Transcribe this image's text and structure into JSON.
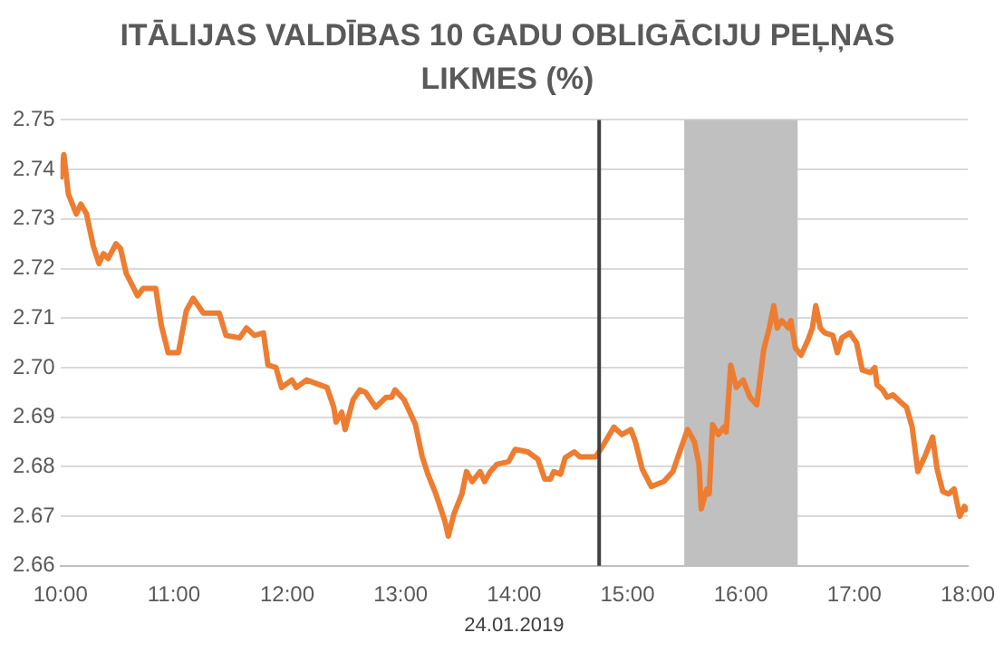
{
  "chart_data": {
    "type": "line",
    "title": "ITĀLIJAS VALDĪBAS 10 GADU OBLIGĀCIJU PEĻŅAS LIKMES (%)",
    "xlabel": "24.01.2019",
    "series": [
      {
        "color": "#ed7d31",
        "x": [
          10.0,
          10.03,
          10.07,
          10.14,
          10.18,
          10.23,
          10.29,
          10.34,
          10.38,
          10.42,
          10.49,
          10.53,
          10.58,
          10.68,
          10.73,
          10.84,
          10.89,
          10.95,
          11.04,
          11.11,
          11.17,
          11.26,
          11.4,
          11.46,
          11.58,
          11.64,
          11.71,
          11.79,
          11.83,
          11.9,
          11.95,
          12.04,
          12.08,
          12.17,
          12.35,
          12.41,
          12.43,
          12.48,
          12.51,
          12.58,
          12.64,
          12.69,
          12.78,
          12.87,
          12.92,
          12.95,
          13.03,
          13.13,
          13.19,
          13.24,
          13.31,
          13.39,
          13.42,
          13.47,
          13.54,
          13.58,
          13.63,
          13.7,
          13.74,
          13.79,
          13.85,
          13.95,
          14.01,
          14.12,
          14.21,
          14.27,
          14.32,
          14.35,
          14.41,
          14.45,
          14.53,
          14.58,
          14.72,
          14.79,
          14.88,
          14.95,
          15.03,
          15.07,
          15.13,
          15.21,
          15.32,
          15.4,
          15.46,
          15.53,
          15.59,
          15.63,
          15.65,
          15.7,
          15.72,
          15.75,
          15.8,
          15.85,
          15.87,
          15.91,
          15.96,
          16.02,
          16.08,
          16.14,
          16.2,
          16.25,
          16.29,
          16.32,
          16.36,
          16.42,
          16.44,
          16.48,
          16.53,
          16.59,
          16.63,
          16.66,
          16.7,
          16.74,
          16.81,
          16.85,
          16.89,
          16.96,
          17.02,
          17.07,
          17.14,
          17.18,
          17.2,
          17.25,
          17.29,
          17.34,
          17.41,
          17.46,
          17.51,
          17.56,
          17.63,
          17.69,
          17.73,
          17.78,
          17.83,
          17.88,
          17.93,
          17.97,
          18.0
        ],
        "values": [
          2.738,
          2.743,
          2.735,
          2.731,
          2.733,
          2.731,
          2.7245,
          2.721,
          2.723,
          2.722,
          2.725,
          2.724,
          2.719,
          2.7145,
          2.716,
          2.716,
          2.7085,
          2.703,
          2.703,
          2.7115,
          2.714,
          2.711,
          2.711,
          2.7065,
          2.706,
          2.708,
          2.7065,
          2.707,
          2.7005,
          2.7,
          2.696,
          2.6975,
          2.696,
          2.6975,
          2.696,
          2.692,
          2.689,
          2.691,
          2.6875,
          2.6935,
          2.6955,
          2.695,
          2.692,
          2.694,
          2.694,
          2.6955,
          2.6935,
          2.6885,
          2.682,
          2.6785,
          2.6745,
          2.669,
          2.666,
          2.6705,
          2.6745,
          2.679,
          2.677,
          2.679,
          2.677,
          2.679,
          2.6805,
          2.681,
          2.6835,
          2.683,
          2.6815,
          2.6775,
          2.6775,
          2.679,
          2.6785,
          2.6818,
          2.683,
          2.682,
          2.682,
          2.6845,
          2.688,
          2.6865,
          2.6875,
          2.685,
          2.6795,
          2.676,
          2.677,
          2.679,
          2.683,
          2.6875,
          2.685,
          2.6805,
          2.6715,
          2.6755,
          2.6745,
          2.6885,
          2.6865,
          2.688,
          2.687,
          2.7005,
          2.696,
          2.6975,
          2.694,
          2.6925,
          2.7035,
          2.708,
          2.7125,
          2.708,
          2.7095,
          2.708,
          2.7095,
          2.704,
          2.7025,
          2.7055,
          2.708,
          2.7125,
          2.708,
          2.707,
          2.7065,
          2.703,
          2.706,
          2.707,
          2.705,
          2.6995,
          2.699,
          2.7,
          2.6965,
          2.6955,
          2.694,
          2.6945,
          2.693,
          2.692,
          2.688,
          2.679,
          2.6825,
          2.686,
          2.6795,
          2.675,
          2.6745,
          2.6755,
          2.67,
          2.672,
          2.671
        ]
      }
    ],
    "xlim": [
      10,
      18
    ],
    "xticks": [
      {
        "value": 10,
        "label": "10:00"
      },
      {
        "value": 11,
        "label": "11:00"
      },
      {
        "value": 12,
        "label": "12:00"
      },
      {
        "value": 13,
        "label": "13:00"
      },
      {
        "value": 14,
        "label": "14:00"
      },
      {
        "value": 15,
        "label": "15:00"
      },
      {
        "value": 16,
        "label": "16:00"
      },
      {
        "value": 17,
        "label": "17:00"
      },
      {
        "value": 18,
        "label": "18:00"
      }
    ],
    "ylim": [
      2.66,
      2.75
    ],
    "yticks": [
      2.66,
      2.67,
      2.68,
      2.69,
      {
        "value": 2.7,
        "label": "2.70"
      },
      2.71,
      2.72,
      2.73,
      2.74,
      2.75
    ],
    "ref_lines": [
      {
        "axis": "x",
        "value": 14.75,
        "color": "#404040"
      }
    ],
    "bands": [
      {
        "axis": "x",
        "from": 15.5,
        "to": 16.5,
        "color": "#c0c0c0"
      }
    ],
    "grid": "y",
    "legend": false,
    "marker": "none",
    "line_style": "solid"
  }
}
